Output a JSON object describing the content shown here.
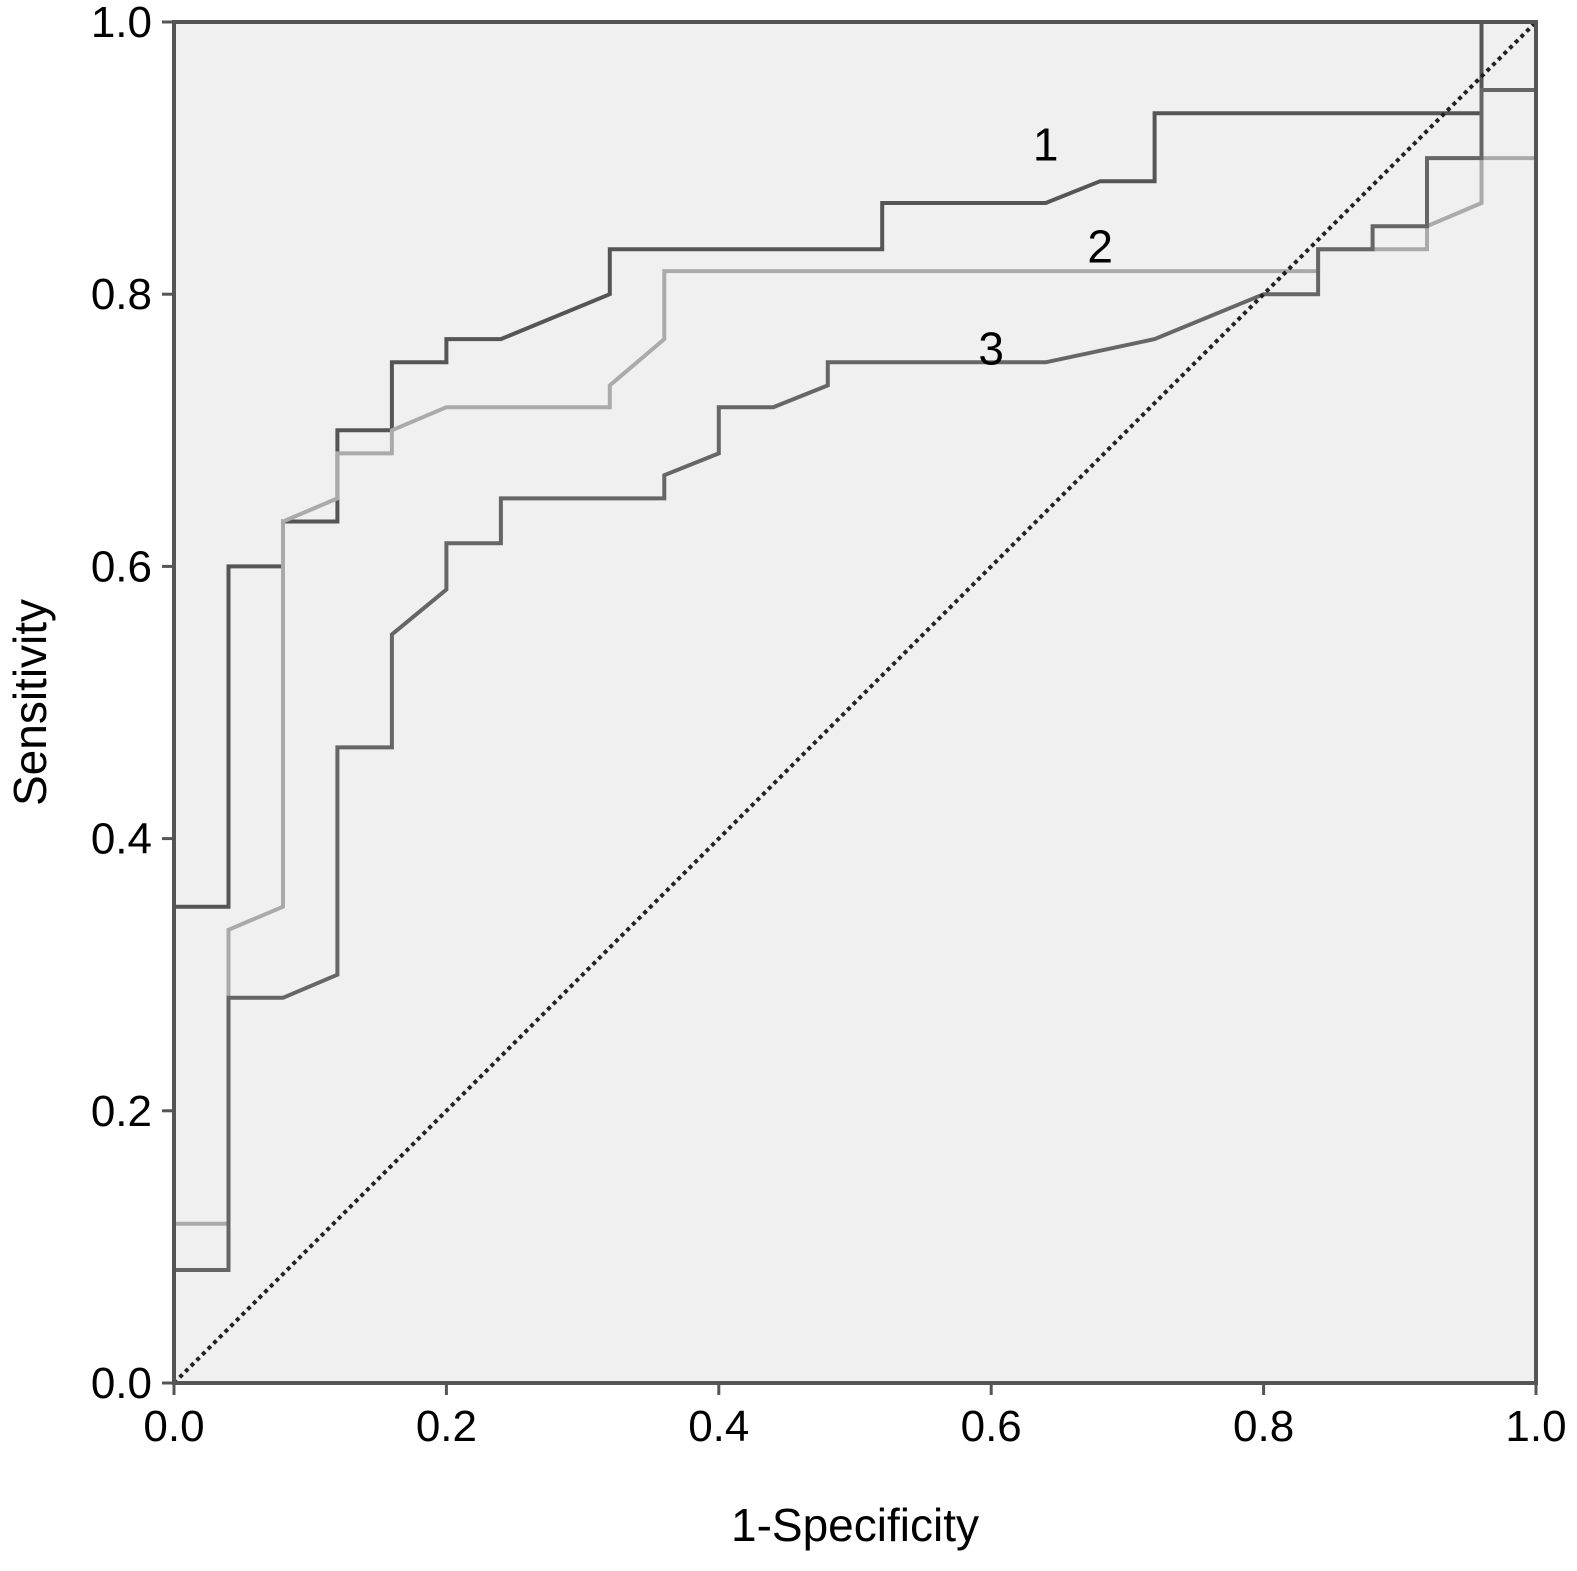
{
  "chart_data": {
    "type": "line",
    "title": "",
    "xlabel": "1-Specificity",
    "ylabel": "Sensitivity",
    "xlim": [
      0,
      1
    ],
    "ylim": [
      0,
      1
    ],
    "xticks": [
      "0.0",
      "0.2",
      "0.4",
      "0.6",
      "0.8",
      "1.0"
    ],
    "yticks": [
      "0.0",
      "0.2",
      "0.4",
      "0.6",
      "0.8",
      "1.0"
    ],
    "grid": false,
    "background_color": "#f0f0f0",
    "reference_line": {
      "from": [
        0,
        0
      ],
      "to": [
        1,
        1
      ],
      "style": "dotted",
      "color": "#222222"
    },
    "series": [
      {
        "label": "1",
        "color": "#555555",
        "label_at": [
          0.64,
          0.91
        ],
        "points": [
          [
            0,
            0
          ],
          [
            0,
            0.35
          ],
          [
            0.04,
            0.35
          ],
          [
            0.04,
            0.6
          ],
          [
            0.08,
            0.6
          ],
          [
            0.08,
            0.633
          ],
          [
            0.12,
            0.633
          ],
          [
            0.12,
            0.7
          ],
          [
            0.16,
            0.7
          ],
          [
            0.16,
            0.75
          ],
          [
            0.2,
            0.75
          ],
          [
            0.2,
            0.767
          ],
          [
            0.24,
            0.767
          ],
          [
            0.32,
            0.8
          ],
          [
            0.32,
            0.833
          ],
          [
            0.52,
            0.833
          ],
          [
            0.52,
            0.867
          ],
          [
            0.64,
            0.867
          ],
          [
            0.68,
            0.883
          ],
          [
            0.72,
            0.883
          ],
          [
            0.72,
            0.933
          ],
          [
            0.96,
            0.933
          ],
          [
            0.96,
            1.0
          ],
          [
            1.0,
            1.0
          ]
        ]
      },
      {
        "label": "2",
        "color": "#aaaaaa",
        "label_at": [
          0.68,
          0.835
        ],
        "points": [
          [
            0,
            0
          ],
          [
            0,
            0.117
          ],
          [
            0.04,
            0.117
          ],
          [
            0.04,
            0.333
          ],
          [
            0.08,
            0.35
          ],
          [
            0.08,
            0.633
          ],
          [
            0.12,
            0.65
          ],
          [
            0.12,
            0.683
          ],
          [
            0.16,
            0.683
          ],
          [
            0.16,
            0.7
          ],
          [
            0.2,
            0.717
          ],
          [
            0.32,
            0.717
          ],
          [
            0.32,
            0.733
          ],
          [
            0.36,
            0.767
          ],
          [
            0.36,
            0.817
          ],
          [
            0.84,
            0.817
          ],
          [
            0.84,
            0.833
          ],
          [
            0.92,
            0.833
          ],
          [
            0.92,
            0.85
          ],
          [
            0.96,
            0.867
          ],
          [
            0.96,
            0.9
          ],
          [
            1.0,
            0.9
          ]
        ]
      },
      {
        "label": "3",
        "color": "#666666",
        "label_at": [
          0.6,
          0.76
        ],
        "points": [
          [
            0,
            0
          ],
          [
            0,
            0.083
          ],
          [
            0.04,
            0.083
          ],
          [
            0.04,
            0.283
          ],
          [
            0.08,
            0.283
          ],
          [
            0.12,
            0.3
          ],
          [
            0.12,
            0.467
          ],
          [
            0.16,
            0.467
          ],
          [
            0.16,
            0.55
          ],
          [
            0.2,
            0.583
          ],
          [
            0.2,
            0.617
          ],
          [
            0.24,
            0.617
          ],
          [
            0.24,
            0.65
          ],
          [
            0.36,
            0.65
          ],
          [
            0.36,
            0.667
          ],
          [
            0.4,
            0.683
          ],
          [
            0.4,
            0.717
          ],
          [
            0.44,
            0.717
          ],
          [
            0.48,
            0.733
          ],
          [
            0.48,
            0.75
          ],
          [
            0.64,
            0.75
          ],
          [
            0.72,
            0.767
          ],
          [
            0.8,
            0.8
          ],
          [
            0.84,
            0.8
          ],
          [
            0.84,
            0.833
          ],
          [
            0.88,
            0.833
          ],
          [
            0.88,
            0.85
          ],
          [
            0.92,
            0.85
          ],
          [
            0.92,
            0.9
          ],
          [
            0.96,
            0.9
          ],
          [
            0.96,
            0.95
          ],
          [
            1.0,
            0.95
          ],
          [
            1.0,
            1.0
          ]
        ]
      }
    ]
  }
}
